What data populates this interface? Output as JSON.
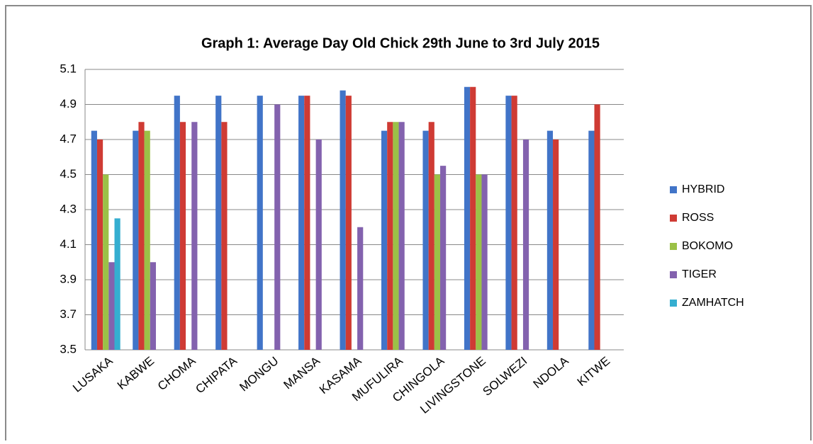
{
  "chart_data": {
    "type": "bar",
    "title": "Graph 1: Average Day Old Chick 29th June to 3rd July 2015",
    "categories": [
      "LUSAKA",
      "KABWE",
      "CHOMA",
      "CHIPATA",
      "MONGU",
      "MANSA",
      "KASAMA",
      "MUFULIRA",
      "CHINGOLA",
      "LIVINGSTONE",
      "SOLWEZI",
      "NDOLA",
      "KITWE"
    ],
    "series": [
      {
        "name": "HYBRID",
        "color": "#4174c8",
        "values": [
          4.75,
          4.75,
          4.95,
          4.95,
          4.95,
          4.95,
          4.98,
          4.75,
          4.75,
          5.0,
          4.95,
          4.75,
          4.75
        ]
      },
      {
        "name": "ROSS",
        "color": "#cf3b34",
        "values": [
          4.7,
          4.8,
          4.8,
          4.8,
          null,
          4.95,
          4.95,
          4.8,
          4.8,
          5.0,
          4.95,
          4.7,
          4.9
        ]
      },
      {
        "name": "BOKOMO",
        "color": "#9bc147",
        "values": [
          4.5,
          4.75,
          null,
          null,
          null,
          null,
          null,
          4.8,
          4.5,
          4.5,
          null,
          null,
          null
        ]
      },
      {
        "name": "TIGER",
        "color": "#8362ae",
        "values": [
          4.0,
          4.0,
          4.8,
          null,
          4.9,
          4.7,
          4.2,
          4.8,
          4.55,
          4.5,
          4.7,
          null,
          null
        ]
      },
      {
        "name": "ZAMHATCH",
        "color": "#35aed0",
        "values": [
          4.25,
          null,
          null,
          null,
          null,
          null,
          null,
          null,
          null,
          null,
          null,
          null,
          null
        ]
      }
    ],
    "ylim": [
      3.5,
      5.1
    ],
    "yticks": [
      3.5,
      3.7,
      3.9,
      4.1,
      4.3,
      4.5,
      4.7,
      4.9,
      5.1
    ],
    "grid": true,
    "legend": "right"
  }
}
